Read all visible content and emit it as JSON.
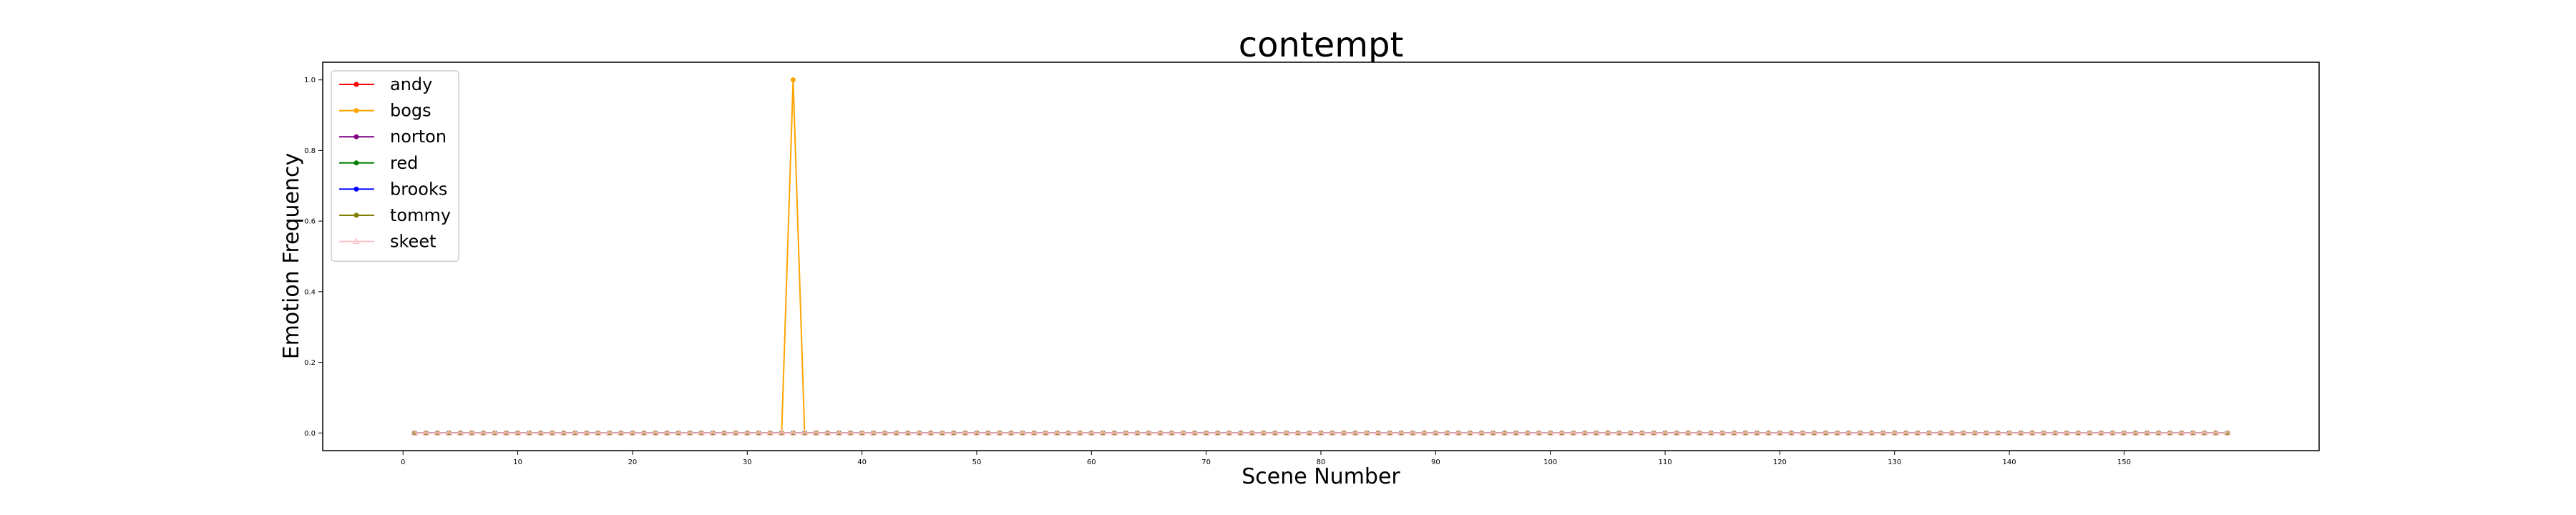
{
  "chart_data": {
    "type": "line",
    "title": "contempt",
    "xlabel": "Scene Number",
    "ylabel": "Emotion Frequency",
    "xlim": [
      -7,
      167
    ],
    "ylim": [
      -0.05,
      1.05
    ],
    "xticks": [
      0,
      10,
      20,
      30,
      40,
      50,
      60,
      70,
      80,
      90,
      100,
      110,
      120,
      130,
      140,
      150
    ],
    "xtick_labels": [
      "0",
      "10",
      "20",
      "30",
      "40",
      "50",
      "60",
      "70",
      "80",
      "90",
      "100",
      "110",
      "120",
      "130",
      "140",
      "150"
    ],
    "yticks": [
      0.0,
      0.2,
      0.4,
      0.6,
      0.8,
      1.0
    ],
    "ytick_labels": [
      "0.0",
      "0.2",
      "0.4",
      "0.6",
      "0.8",
      "1.0"
    ],
    "x_range": [
      1,
      159
    ],
    "legend_position": "top-left",
    "grid": false,
    "series": [
      {
        "name": "andy",
        "color": "#ff0000",
        "marker": "circle",
        "nonzero": []
      },
      {
        "name": "bogs",
        "color": "#ffa500",
        "marker": "circle",
        "nonzero": [
          {
            "x": 34,
            "y": 1.0
          }
        ]
      },
      {
        "name": "norton",
        "color": "#800080",
        "marker": "circle",
        "nonzero": []
      },
      {
        "name": "red",
        "color": "#008000",
        "marker": "circle",
        "nonzero": []
      },
      {
        "name": "brooks",
        "color": "#0000ff",
        "marker": "circle",
        "nonzero": []
      },
      {
        "name": "tommy",
        "color": "#808000",
        "marker": "circle",
        "nonzero": []
      },
      {
        "name": "skeet",
        "color": "#ffc0cb",
        "marker": "triangle",
        "nonzero": []
      }
    ]
  }
}
